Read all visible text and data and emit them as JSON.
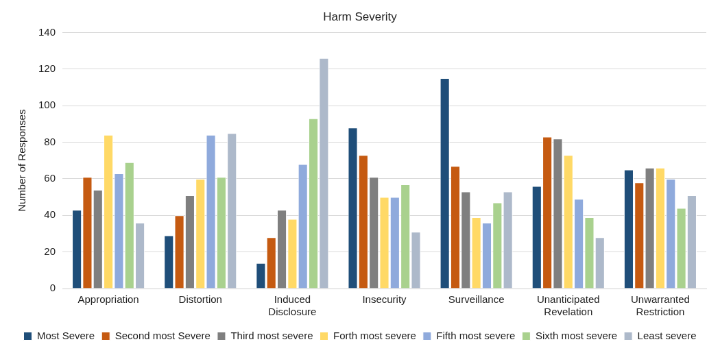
{
  "chart_data": {
    "type": "bar",
    "title": "Harm Severity",
    "ylabel": "Number of Responses",
    "categories": [
      "Appropriation",
      "Distortion",
      "Induced Disclosure",
      "Insecurity",
      "Surveillance",
      "Unanticipated Revelation",
      "Unwarranted Restriction"
    ],
    "series": [
      {
        "name": "Most Severe",
        "color": "#1f4e79",
        "values": [
          43,
          29,
          14,
          88,
          115,
          56,
          65
        ]
      },
      {
        "name": "Second most Severe",
        "color": "#c55a11",
        "values": [
          61,
          40,
          28,
          73,
          67,
          83,
          58
        ]
      },
      {
        "name": "Third most severe",
        "color": "#7f7f7f",
        "values": [
          54,
          51,
          43,
          61,
          53,
          82,
          66
        ]
      },
      {
        "name": "Forth most severe",
        "color": "#ffd966",
        "values": [
          84,
          60,
          38,
          50,
          39,
          73,
          66
        ]
      },
      {
        "name": "Fifth most severe",
        "color": "#8faadc",
        "values": [
          63,
          84,
          68,
          50,
          36,
          49,
          60
        ]
      },
      {
        "name": "Sixth most severe",
        "color": "#a9d18e",
        "values": [
          69,
          61,
          93,
          57,
          47,
          39,
          44
        ]
      },
      {
        "name": "Least severe",
        "color": "#adb9ca",
        "values": [
          36,
          85,
          126,
          31,
          53,
          28,
          51
        ]
      }
    ],
    "ylim": [
      0,
      140
    ],
    "yticks": [
      0,
      20,
      40,
      60,
      80,
      100,
      120,
      140
    ],
    "grid": "y",
    "legend": "bottom"
  }
}
